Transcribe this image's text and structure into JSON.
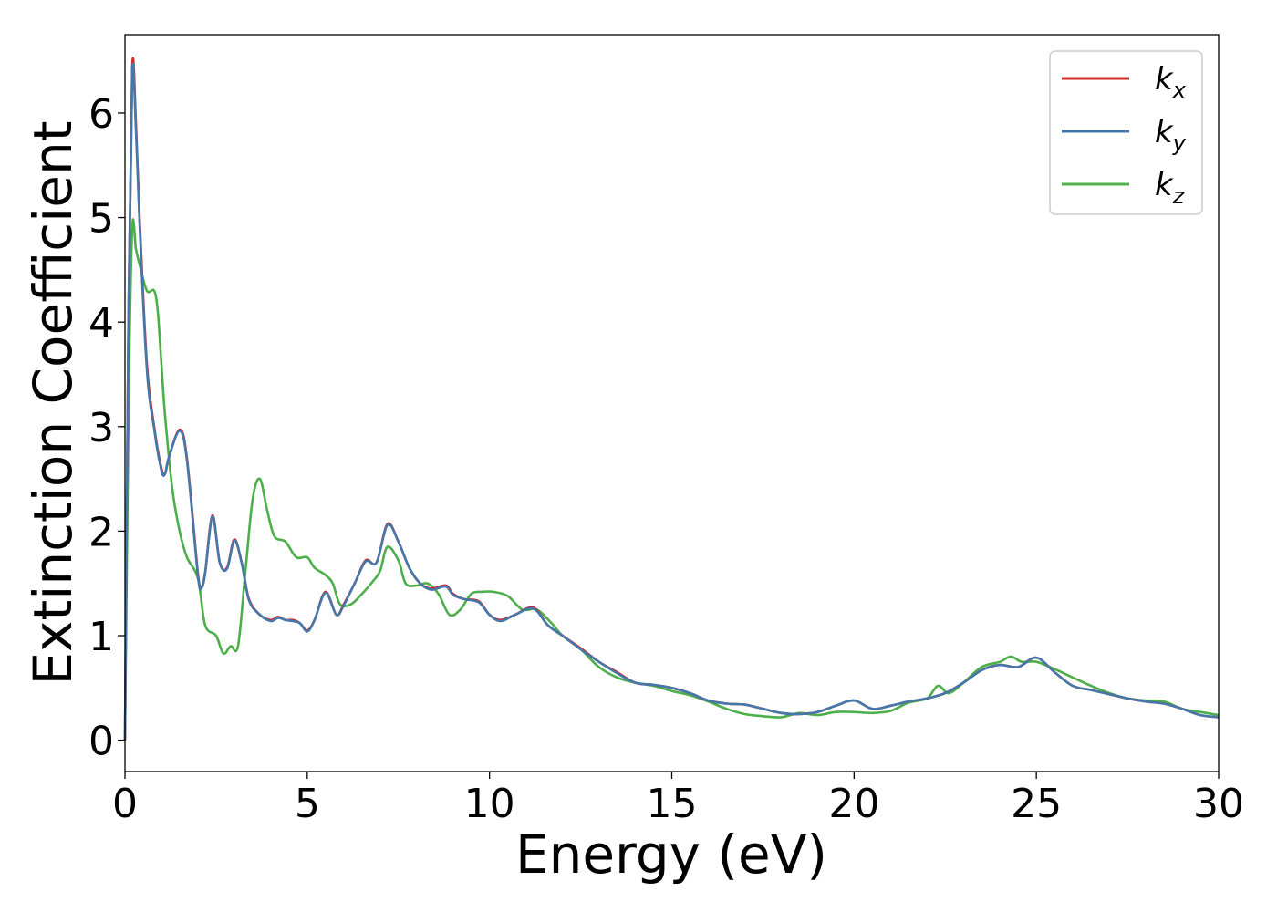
{
  "chart_data": {
    "type": "line",
    "xlabel": "Energy (eV)",
    "ylabel": "Extinction Coefficient",
    "xlim": [
      0,
      30
    ],
    "ylim": [
      -0.3,
      6.75
    ],
    "xticks": [
      0,
      5,
      10,
      15,
      20,
      25,
      30
    ],
    "yticks": [
      0,
      1,
      2,
      3,
      4,
      5,
      6
    ],
    "grid": false,
    "legend_position": "top-right",
    "series": [
      {
        "name_base": "k",
        "name_sub": "x",
        "color": "#d62728",
        "x": [
          0,
          0.1,
          0.2,
          0.3,
          0.4,
          0.6,
          0.8,
          1.0,
          1.1,
          1.2,
          1.5,
          1.7,
          2.0,
          2.1,
          2.2,
          2.4,
          2.6,
          2.8,
          3.0,
          3.2,
          3.4,
          3.7,
          4.0,
          4.2,
          4.4,
          4.6,
          4.8,
          5.0,
          5.2,
          5.5,
          5.8,
          6.0,
          6.3,
          6.6,
          6.9,
          7.2,
          7.5,
          7.8,
          8.1,
          8.4,
          8.8,
          9.0,
          9.3,
          9.7,
          10.0,
          10.3,
          10.7,
          11.2,
          11.6,
          12.0,
          12.5,
          13.0,
          13.5,
          14.0,
          14.5,
          15.0,
          15.5,
          16.0,
          16.5,
          17.0,
          17.5,
          18.0,
          18.5,
          19.0,
          19.5,
          20.0,
          20.5,
          21.0,
          21.5,
          22.0,
          22.5,
          23.0,
          23.5,
          24.0,
          24.5,
          25.0,
          25.5,
          26.0,
          26.5,
          27.0,
          27.5,
          28.0,
          28.5,
          29.0,
          29.5,
          30.0
        ],
        "y": [
          0,
          4.2,
          6.45,
          5.9,
          5.0,
          3.6,
          3.0,
          2.6,
          2.55,
          2.7,
          2.97,
          2.7,
          1.6,
          1.47,
          1.6,
          2.15,
          1.7,
          1.65,
          1.92,
          1.7,
          1.35,
          1.2,
          1.15,
          1.18,
          1.15,
          1.15,
          1.12,
          1.05,
          1.15,
          1.42,
          1.2,
          1.3,
          1.5,
          1.72,
          1.7,
          2.07,
          1.9,
          1.65,
          1.5,
          1.45,
          1.48,
          1.4,
          1.35,
          1.33,
          1.2,
          1.15,
          1.2,
          1.27,
          1.1,
          1.0,
          0.88,
          0.75,
          0.65,
          0.55,
          0.53,
          0.5,
          0.45,
          0.38,
          0.35,
          0.34,
          0.3,
          0.26,
          0.25,
          0.27,
          0.33,
          0.38,
          0.3,
          0.33,
          0.37,
          0.4,
          0.45,
          0.55,
          0.67,
          0.72,
          0.7,
          0.79,
          0.65,
          0.52,
          0.48,
          0.44,
          0.4,
          0.37,
          0.35,
          0.3,
          0.24,
          0.22
        ]
      },
      {
        "name_base": "k",
        "name_sub": "y",
        "color": "#4477aa",
        "x": [
          0,
          0.1,
          0.2,
          0.3,
          0.4,
          0.6,
          0.8,
          1.0,
          1.1,
          1.2,
          1.5,
          1.7,
          2.0,
          2.1,
          2.2,
          2.4,
          2.6,
          2.8,
          3.0,
          3.2,
          3.4,
          3.7,
          4.0,
          4.2,
          4.4,
          4.6,
          4.8,
          5.0,
          5.2,
          5.5,
          5.8,
          6.0,
          6.3,
          6.6,
          6.9,
          7.2,
          7.5,
          7.8,
          8.1,
          8.4,
          8.8,
          9.0,
          9.3,
          9.7,
          10.0,
          10.3,
          10.7,
          11.2,
          11.6,
          12.0,
          12.5,
          13.0,
          13.5,
          14.0,
          14.5,
          15.0,
          15.5,
          16.0,
          16.5,
          17.0,
          17.5,
          18.0,
          18.5,
          19.0,
          19.5,
          20.0,
          20.5,
          21.0,
          21.5,
          22.0,
          22.5,
          23.0,
          23.5,
          24.0,
          24.5,
          25.0,
          25.5,
          26.0,
          26.5,
          27.0,
          27.5,
          28.0,
          28.5,
          29.0,
          29.5,
          30.0
        ],
        "y": [
          0,
          4.15,
          6.4,
          5.85,
          4.95,
          3.55,
          2.98,
          2.58,
          2.55,
          2.7,
          2.96,
          2.68,
          1.58,
          1.46,
          1.6,
          2.14,
          1.7,
          1.64,
          1.91,
          1.7,
          1.34,
          1.2,
          1.14,
          1.17,
          1.15,
          1.14,
          1.12,
          1.04,
          1.15,
          1.41,
          1.2,
          1.29,
          1.5,
          1.71,
          1.7,
          2.06,
          1.9,
          1.65,
          1.5,
          1.44,
          1.47,
          1.39,
          1.35,
          1.32,
          1.2,
          1.14,
          1.2,
          1.26,
          1.1,
          1.0,
          0.87,
          0.75,
          0.64,
          0.55,
          0.53,
          0.5,
          0.45,
          0.38,
          0.35,
          0.34,
          0.3,
          0.26,
          0.25,
          0.27,
          0.33,
          0.38,
          0.3,
          0.33,
          0.37,
          0.4,
          0.45,
          0.55,
          0.67,
          0.72,
          0.7,
          0.79,
          0.65,
          0.52,
          0.48,
          0.44,
          0.4,
          0.37,
          0.35,
          0.3,
          0.24,
          0.22
        ]
      },
      {
        "name_base": "k",
        "name_sub": "z",
        "color": "#4daf4a",
        "x": [
          0,
          0.1,
          0.2,
          0.3,
          0.4,
          0.6,
          0.8,
          0.9,
          1.0,
          1.1,
          1.3,
          1.5,
          1.7,
          2.0,
          2.2,
          2.5,
          2.7,
          2.9,
          3.1,
          3.3,
          3.5,
          3.7,
          3.9,
          4.1,
          4.4,
          4.7,
          5.0,
          5.2,
          5.5,
          5.7,
          5.9,
          6.2,
          6.5,
          6.8,
          7.0,
          7.2,
          7.5,
          7.7,
          8.0,
          8.3,
          8.6,
          8.9,
          9.2,
          9.5,
          9.8,
          10.1,
          10.5,
          10.9,
          11.3,
          11.7,
          12.0,
          12.5,
          13.0,
          13.5,
          14.0,
          14.5,
          15.0,
          15.5,
          16.0,
          16.5,
          17.0,
          17.5,
          18.0,
          18.5,
          19.0,
          19.5,
          20.0,
          20.5,
          21.0,
          21.5,
          22.0,
          22.3,
          22.6,
          23.0,
          23.5,
          24.0,
          24.3,
          24.6,
          25.0,
          25.5,
          26.0,
          26.5,
          27.0,
          27.5,
          28.0,
          28.5,
          29.0,
          29.5,
          30.0
        ],
        "y": [
          0,
          3.2,
          4.9,
          4.7,
          4.55,
          4.3,
          4.3,
          4.1,
          3.6,
          3.1,
          2.4,
          2.0,
          1.75,
          1.55,
          1.1,
          1.0,
          0.83,
          0.9,
          0.9,
          1.6,
          2.3,
          2.5,
          2.2,
          1.95,
          1.9,
          1.75,
          1.75,
          1.65,
          1.58,
          1.5,
          1.3,
          1.3,
          1.4,
          1.52,
          1.62,
          1.85,
          1.72,
          1.5,
          1.48,
          1.5,
          1.4,
          1.2,
          1.25,
          1.4,
          1.42,
          1.42,
          1.38,
          1.25,
          1.25,
          1.12,
          1.0,
          0.87,
          0.7,
          0.6,
          0.55,
          0.52,
          0.47,
          0.43,
          0.37,
          0.3,
          0.25,
          0.23,
          0.22,
          0.26,
          0.24,
          0.27,
          0.27,
          0.26,
          0.28,
          0.36,
          0.4,
          0.52,
          0.45,
          0.55,
          0.7,
          0.75,
          0.8,
          0.75,
          0.75,
          0.68,
          0.6,
          0.52,
          0.45,
          0.4,
          0.38,
          0.37,
          0.3,
          0.27,
          0.24
        ]
      }
    ]
  }
}
